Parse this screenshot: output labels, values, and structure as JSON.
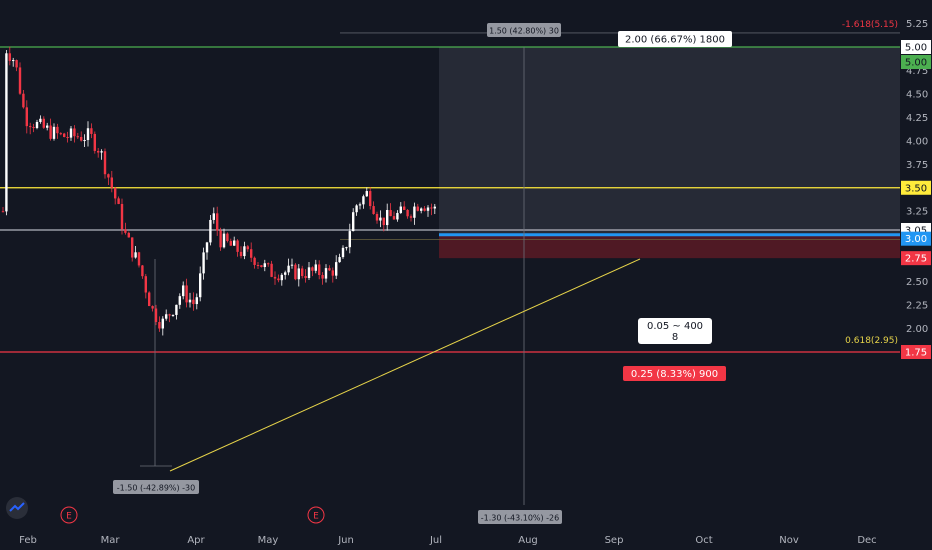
{
  "chart_data": {
    "type": "candlestick",
    "title": "",
    "xlabel": "",
    "ylabel": "",
    "ylim": [
      1.7,
      5.3
    ],
    "grid": false,
    "y_ticks": [
      "5.25",
      "5.00",
      "4.75",
      "4.50",
      "4.25",
      "4.00",
      "3.75",
      "3.50",
      "3.25",
      "3.00",
      "2.75",
      "2.50",
      "2.25",
      "2.00",
      "1.75"
    ],
    "x_ticks": [
      "Feb",
      "Mar",
      "Apr",
      "May",
      "Jun",
      "Jul",
      "Aug",
      "Sep",
      "Oct",
      "Nov",
      "Dec"
    ],
    "earnings_markers": [
      "E",
      "E"
    ],
    "horizontal_levels": [
      {
        "name": "green-resistance",
        "value": 5.0,
        "color": "#4caf50",
        "label": "5.00"
      },
      {
        "name": "yellow-resistance",
        "value": 3.5,
        "color": "#ffeb3b",
        "label": "3.50"
      },
      {
        "name": "white-level",
        "value": 3.05,
        "color": "#b2b5be",
        "label": "3.05"
      },
      {
        "name": "blue-entry",
        "value": 3.0,
        "color": "#2196f3",
        "label": "3.00"
      },
      {
        "name": "red-stop",
        "value": 1.75,
        "color": "#f23645",
        "label": "1.75"
      }
    ],
    "fib_label": "-1.618(5.15)",
    "fib_value": 5.15,
    "fib_618_label": "0.618(2.95)",
    "fib_618_value": 2.95,
    "price_label_current": "2.75",
    "measure_top_label": "1.50 (42.80%) 30",
    "measure_bottom_label": "-1.30 (-43.10%) -26",
    "measure_left_label": "-1.50 (-42.89%) -30",
    "position": {
      "target_label": "2.00 (66.67%) 1800",
      "entry_label_1": "0.05 ~ 400",
      "entry_label_2": "8",
      "stop_label": "0.25 (8.33%) 900",
      "entry": 3.0,
      "target": 5.0,
      "stop": 2.75
    },
    "colors": {
      "background": "#131722",
      "up": "#ffffff",
      "down": "#f23645",
      "target_zone": "#2a2e39",
      "stop_zone": "#5b1a24"
    }
  }
}
